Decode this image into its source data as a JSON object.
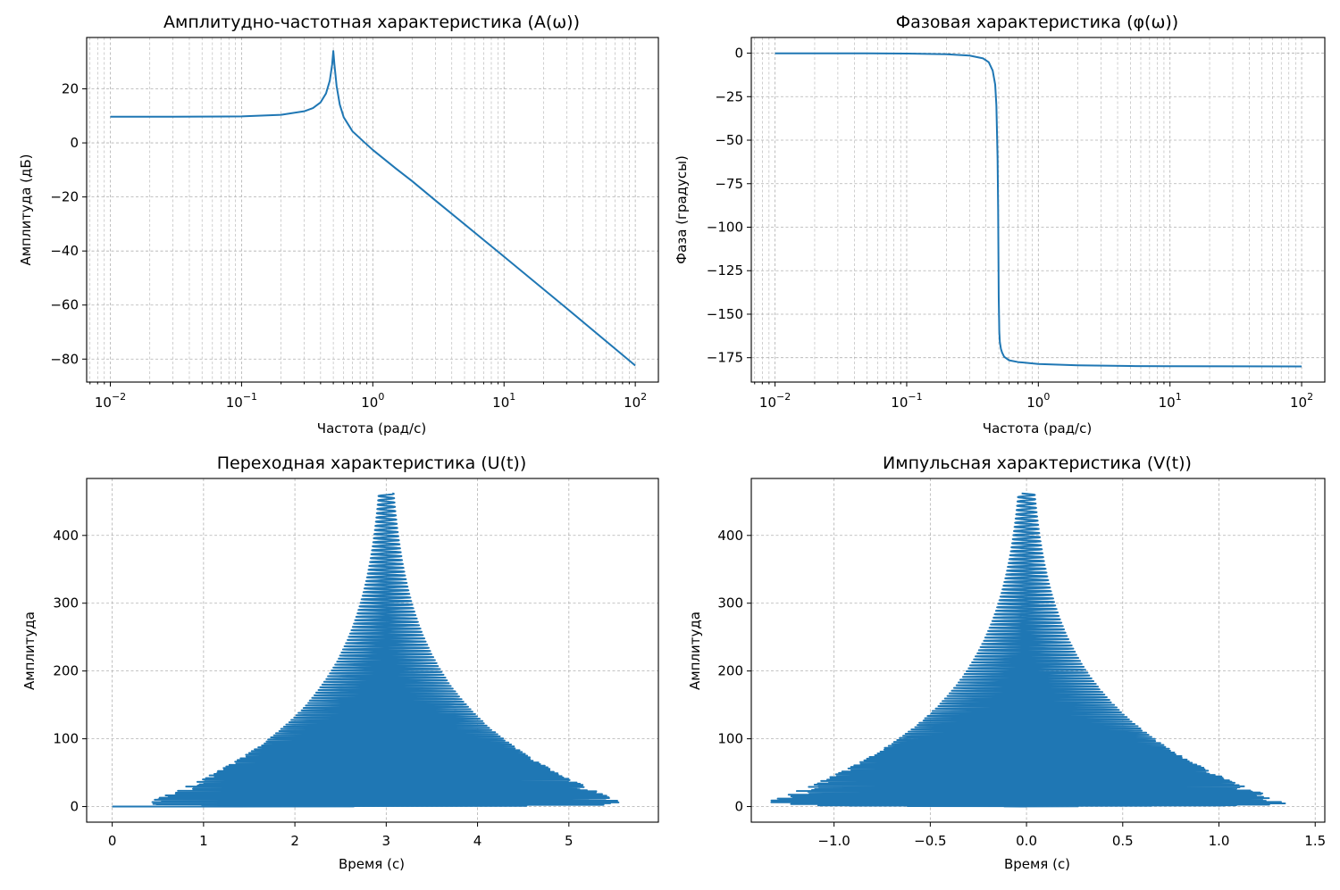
{
  "colors": {
    "line": "#1f77b4",
    "grid": "#b0b0b0"
  },
  "chart_data": [
    {
      "type": "line",
      "title": "Амплитудно-частотная характеристика (A(ω))",
      "xlabel": "Частота (рад/с)",
      "ylabel": "Амплитуда (дБ)",
      "xscale": "log",
      "xlim": [
        0.0066,
        150
      ],
      "ylim": [
        -88.5,
        39
      ],
      "xticks": [
        0.01,
        0.1,
        1,
        10,
        100
      ],
      "xtick_labels": [
        {
          "base": "10",
          "exp": "−2"
        },
        {
          "base": "10",
          "exp": "−1"
        },
        {
          "base": "10",
          "exp": "0"
        },
        {
          "base": "10",
          "exp": "1"
        },
        {
          "base": "10",
          "exp": "2"
        }
      ],
      "yticks": [
        20,
        0,
        -20,
        -40,
        -60,
        -80
      ],
      "ytick_labels": [
        "20",
        "0",
        "−20",
        "−40",
        "−60",
        "−80"
      ],
      "grid": true,
      "series": [
        {
          "x": [
            0.01,
            0.03,
            0.1,
            0.2,
            0.3,
            0.35,
            0.4,
            0.44,
            0.47,
            0.49,
            0.5,
            0.51,
            0.53,
            0.56,
            0.6,
            0.7,
            0.85,
            1,
            1.5,
            2,
            3,
            5,
            10,
            30,
            100
          ],
          "y": [
            9.7,
            9.7,
            9.8,
            10.4,
            11.7,
            12.9,
            15.0,
            18.3,
            23.0,
            29.0,
            34.0,
            29.0,
            21.0,
            14.2,
            9.5,
            4.3,
            0.5,
            -2.6,
            -9.5,
            -14.2,
            -21.3,
            -30.1,
            -42.1,
            -61.2,
            -82.4
          ]
        }
      ]
    },
    {
      "type": "line",
      "title": "Фазовая характеристика (φ(ω))",
      "xlabel": "Частота (рад/с)",
      "ylabel": "Фаза (градусы)",
      "xscale": "log",
      "xlim": [
        0.0066,
        150
      ],
      "ylim": [
        -189,
        9
      ],
      "xticks": [
        0.01,
        0.1,
        1,
        10,
        100
      ],
      "xtick_labels": [
        {
          "base": "10",
          "exp": "−2"
        },
        {
          "base": "10",
          "exp": "−1"
        },
        {
          "base": "10",
          "exp": "0"
        },
        {
          "base": "10",
          "exp": "1"
        },
        {
          "base": "10",
          "exp": "2"
        }
      ],
      "yticks": [
        0,
        -25,
        -50,
        -75,
        -100,
        -125,
        -150,
        -175
      ],
      "ytick_labels": [
        "0",
        "−25",
        "−50",
        "−75",
        "−100",
        "−125",
        "−150",
        "−175"
      ],
      "grid": true,
      "series": [
        {
          "x": [
            0.01,
            0.05,
            0.1,
            0.2,
            0.3,
            0.38,
            0.42,
            0.45,
            0.47,
            0.48,
            0.49,
            0.495,
            0.5,
            0.505,
            0.51,
            0.52,
            0.53,
            0.55,
            0.6,
            0.7,
            1,
            2,
            5,
            10,
            100
          ],
          "y": [
            -0.1,
            -0.1,
            -0.2,
            -0.6,
            -1.4,
            -3.0,
            -5.2,
            -10.0,
            -18.0,
            -30.0,
            -60.0,
            -90.0,
            -140.0,
            -160.0,
            -166.0,
            -170.0,
            -172.0,
            -174.5,
            -176.5,
            -177.5,
            -178.6,
            -179.4,
            -179.8,
            -179.9,
            -180.0
          ]
        }
      ]
    },
    {
      "type": "line",
      "title": "Переходная характеристика (U(t))",
      "xlabel": "Время (с)",
      "ylabel": "Амплитуда",
      "xlim": [
        -0.28,
        5.98
      ],
      "ylim": [
        -23,
        484
      ],
      "xticks": [
        0,
        1,
        2,
        3,
        4,
        5
      ],
      "xtick_labels": [
        "0",
        "1",
        "2",
        "3",
        "4",
        "5"
      ],
      "yticks": [
        0,
        100,
        200,
        300,
        400
      ],
      "ytick_labels": [
        "0",
        "100",
        "200",
        "300",
        "400"
      ],
      "grid": true,
      "series": [
        {
          "oscillation": {
            "center": 3.0,
            "y_start": 0,
            "y_end": 462,
            "samples": 2400,
            "cycles": 46,
            "amplitude_max": 2.74,
            "amplitude_decay": 70,
            "start_x": 0.0
          }
        }
      ]
    },
    {
      "type": "line",
      "title": "Импульсная характеристика (V(t))",
      "xlabel": "Время (с)",
      "ylabel": "Амплитуда",
      "xlim": [
        -1.43,
        1.55
      ],
      "ylim": [
        -23,
        484
      ],
      "xticks": [
        -1.0,
        -0.5,
        0.0,
        0.5,
        1.0,
        1.5
      ],
      "xtick_labels": [
        "−1.0",
        "−0.5",
        "0.0",
        "0.5",
        "1.0",
        "1.5"
      ],
      "yticks": [
        0,
        100,
        200,
        300,
        400
      ],
      "ytick_labels": [
        "0",
        "100",
        "200",
        "300",
        "400"
      ],
      "grid": true,
      "series": [
        {
          "oscillation": {
            "center": 0.0,
            "y_start": 0,
            "y_end": 462,
            "samples": 2400,
            "cycles": 46,
            "amplitude_max": 1.42,
            "amplitude_decay": 70,
            "start_x": 0.0,
            "phase": "sine"
          }
        }
      ]
    }
  ]
}
